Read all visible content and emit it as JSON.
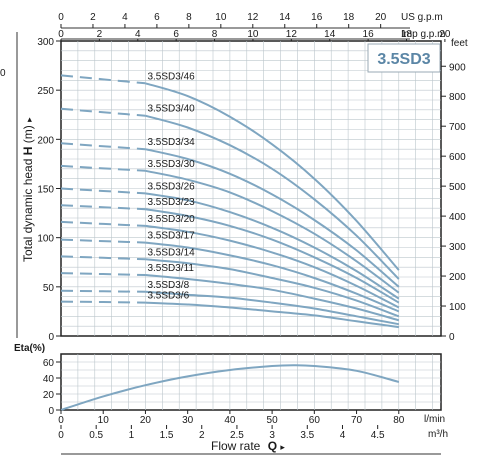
{
  "chart_data": {
    "type": "line",
    "badge": "3.5SD3",
    "head_chart": {
      "ylabel": "Total dynamic head",
      "ylabel_symbol": "H",
      "ylabel_unit": "(m)",
      "ylim": [
        0,
        300
      ],
      "yticks": [
        0,
        50,
        100,
        150,
        200,
        250,
        300
      ],
      "right_axis": {
        "unit": "feet",
        "ticks": [
          0,
          100,
          200,
          300,
          400,
          500,
          600,
          700,
          800,
          900
        ]
      },
      "x_lmin_range": [
        0,
        90
      ],
      "dashed_until_lmin": 20,
      "series": [
        {
          "name": "3.5SD3/46",
          "values": [
            [
              0,
              265
            ],
            [
              20,
              257
            ],
            [
              30,
              244
            ],
            [
              40,
              223
            ],
            [
              50,
              195
            ],
            [
              60,
              160
            ],
            [
              70,
              117
            ],
            [
              80,
              67
            ]
          ]
        },
        {
          "name": "3.5SD3/40",
          "values": [
            [
              0,
              231
            ],
            [
              20,
              224
            ],
            [
              30,
              212
            ],
            [
              40,
              194
            ],
            [
              50,
              170
            ],
            [
              60,
              139
            ],
            [
              70,
              102
            ],
            [
              80,
              58
            ]
          ]
        },
        {
          "name": "3.5SD3/34",
          "values": [
            [
              0,
              196
            ],
            [
              20,
              190
            ],
            [
              30,
              180
            ],
            [
              40,
              165
            ],
            [
              50,
              144
            ],
            [
              60,
              118
            ],
            [
              70,
              87
            ],
            [
              80,
              50
            ]
          ]
        },
        {
          "name": "3.5SD3/30",
          "values": [
            [
              0,
              173
            ],
            [
              20,
              168
            ],
            [
              30,
              159
            ],
            [
              40,
              146
            ],
            [
              50,
              127
            ],
            [
              60,
              104
            ],
            [
              70,
              76
            ],
            [
              80,
              44
            ]
          ]
        },
        {
          "name": "3.5SD3/26",
          "values": [
            [
              0,
              150
            ],
            [
              20,
              145
            ],
            [
              30,
              138
            ],
            [
              40,
              126
            ],
            [
              50,
              110
            ],
            [
              60,
              90
            ],
            [
              70,
              66
            ],
            [
              80,
              38
            ]
          ]
        },
        {
          "name": "3.5SD3/23",
          "values": [
            [
              0,
              133
            ],
            [
              20,
              129
            ],
            [
              30,
              122
            ],
            [
              40,
              112
            ],
            [
              50,
              98
            ],
            [
              60,
              80
            ],
            [
              70,
              59
            ],
            [
              80,
              34
            ]
          ]
        },
        {
          "name": "3.5SD3/20",
          "values": [
            [
              0,
              116
            ],
            [
              20,
              112
            ],
            [
              30,
              106
            ],
            [
              40,
              97
            ],
            [
              50,
              85
            ],
            [
              60,
              70
            ],
            [
              70,
              51
            ],
            [
              80,
              29
            ]
          ]
        },
        {
          "name": "3.5SD3/17",
          "values": [
            [
              0,
              98
            ],
            [
              20,
              95
            ],
            [
              30,
              90
            ],
            [
              40,
              82
            ],
            [
              50,
              72
            ],
            [
              60,
              59
            ],
            [
              70,
              43
            ],
            [
              80,
              25
            ]
          ]
        },
        {
          "name": "3.5SD3/14",
          "values": [
            [
              0,
              81
            ],
            [
              20,
              78
            ],
            [
              30,
              74
            ],
            [
              40,
              68
            ],
            [
              50,
              59
            ],
            [
              60,
              49
            ],
            [
              70,
              36
            ],
            [
              80,
              20
            ]
          ]
        },
        {
          "name": "3.5SD3/11",
          "values": [
            [
              0,
              64
            ],
            [
              20,
              62
            ],
            [
              30,
              58
            ],
            [
              40,
              53
            ],
            [
              50,
              47
            ],
            [
              60,
              38
            ],
            [
              70,
              28
            ],
            [
              80,
              16
            ]
          ]
        },
        {
          "name": "3.5SD3/8",
          "values": [
            [
              0,
              46
            ],
            [
              20,
              45
            ],
            [
              30,
              42
            ],
            [
              40,
              39
            ],
            [
              50,
              34
            ],
            [
              60,
              28
            ],
            [
              70,
              20
            ],
            [
              80,
              12
            ]
          ]
        },
        {
          "name": "3.5SD3/6",
          "values": [
            [
              0,
              35
            ],
            [
              20,
              34
            ],
            [
              30,
              32
            ],
            [
              40,
              29
            ],
            [
              50,
              25
            ],
            [
              60,
              21
            ],
            [
              70,
              15
            ],
            [
              80,
              9
            ]
          ]
        }
      ]
    },
    "eta_chart": {
      "ylabel": "Eta(%)",
      "ylim": [
        0,
        70
      ],
      "yticks": [
        0,
        20,
        40,
        60
      ],
      "series": [
        {
          "values": [
            [
              0,
              0
            ],
            [
              10,
              17
            ],
            [
              20,
              31
            ],
            [
              30,
              42
            ],
            [
              40,
              50
            ],
            [
              50,
              55
            ],
            [
              55,
              56
            ],
            [
              60,
              55
            ],
            [
              70,
              49
            ],
            [
              80,
              35
            ]
          ]
        }
      ]
    },
    "x_axes": {
      "lmin": {
        "unit": "l/min",
        "range": [
          0,
          90
        ],
        "ticks": [
          0,
          10,
          20,
          30,
          40,
          50,
          60,
          70,
          80
        ]
      },
      "m3h": {
        "unit": "m³/h",
        "ticks": [
          "0",
          "0.5",
          "1",
          "1.5",
          "2",
          "2.5",
          "3",
          "3.5",
          "4",
          "4.5"
        ]
      },
      "us_gpm": {
        "unit": "US g.p.m",
        "ticks": [
          0,
          2,
          4,
          6,
          8,
          10,
          12,
          14,
          16,
          18,
          20
        ]
      },
      "imp_gpm": {
        "unit": "Imp g.p.m",
        "ticks": [
          0,
          2,
          4,
          6,
          8,
          10,
          12,
          14,
          16,
          18,
          20
        ]
      },
      "title": "Flow rate",
      "title_symbol": "Q"
    },
    "colors": {
      "curve": "#7fa6c1",
      "badge": "#5b86a6"
    }
  }
}
